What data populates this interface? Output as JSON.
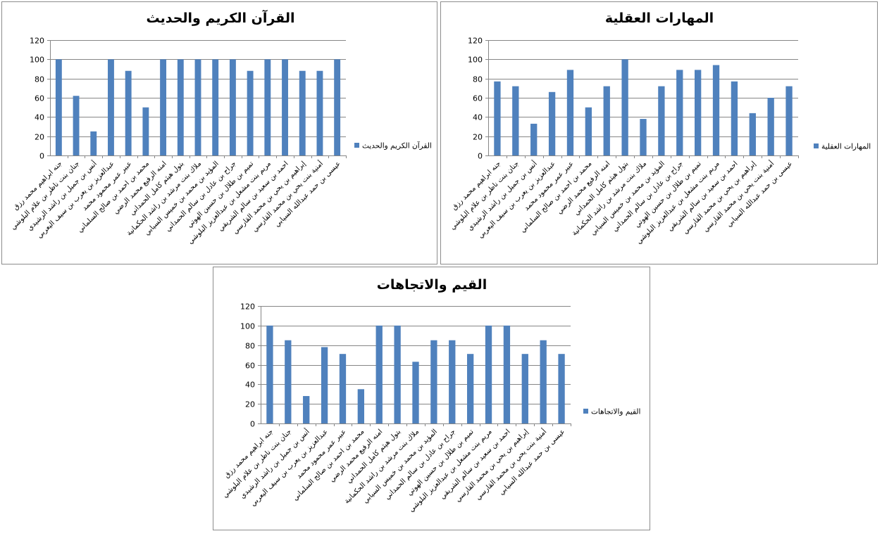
{
  "colors": {
    "bar": "#4F81BD",
    "grid": "#868686",
    "axis": "#868686"
  },
  "categories": [
    "جنه ابراهيم محمد رزق",
    "جنان بنت ناظر بن علام البلوشي",
    "أنس بن جميل بن راشد الرشيدي",
    "عبدالعزيز بن يعرب بن سيف اليعربي",
    "عبير عمر  محمود محمد",
    "محمد بن احمد بن صالح السلماني",
    "امنه الرفيع محمد الرضي",
    "بتول هيثم كامل الحمداني",
    "ملاك بنت مرشد بن راشد الحكمانية",
    "المؤيد بن محمد بن خميس السيابي",
    "جراح بن عادل بن سالم الحمداني",
    "تميم بن طلال بن حسين الهوتي",
    "مريم بنت مشعل بن عبدالعزيز البلوشي",
    "احمد بن سعيد بن سالم الشريقي",
    "إبراهيم بن يحي بن محمد القارسي",
    "أمنية بنت يحي بن محمد القارسي",
    "عيسى بن حمد عبدالله السيابي"
  ],
  "chart_data": [
    {
      "type": "bar",
      "title": "القرآن الكريم والحديث",
      "series": [
        {
          "name": "القرآن الكريم والحديث",
          "values": [
            100,
            62,
            25,
            100,
            88,
            50,
            100,
            100,
            100,
            100,
            100,
            88,
            100,
            100,
            88,
            88,
            100
          ]
        }
      ],
      "ylim": [
        0,
        120
      ],
      "yticks": [
        "0",
        "20",
        "40",
        "60",
        "80",
        "100",
        "120"
      ],
      "grid": true,
      "legend": "right"
    },
    {
      "type": "bar",
      "title": "المهارات العقلية",
      "series": [
        {
          "name": "المهارات العقلية",
          "values": [
            77,
            72,
            33,
            66,
            89,
            50,
            72,
            100,
            38,
            72,
            89,
            89,
            94,
            77,
            44,
            60,
            72
          ]
        }
      ],
      "ylim": [
        0,
        120
      ],
      "yticks": [
        "0",
        "20",
        "40",
        "60",
        "80",
        "100",
        "120"
      ],
      "grid": true,
      "legend": "right"
    },
    {
      "type": "bar",
      "title": "القيم والاتجاهات",
      "series": [
        {
          "name": "القيم والاتجاهات",
          "values": [
            100,
            85,
            28,
            78,
            71,
            35,
            100,
            100,
            63,
            85,
            85,
            71,
            100,
            100,
            71,
            85,
            71
          ]
        }
      ],
      "ylim": [
        0,
        120
      ],
      "yticks": [
        "0",
        "20",
        "40",
        "60",
        "80",
        "100",
        "120"
      ],
      "grid": true,
      "legend": "right"
    }
  ]
}
